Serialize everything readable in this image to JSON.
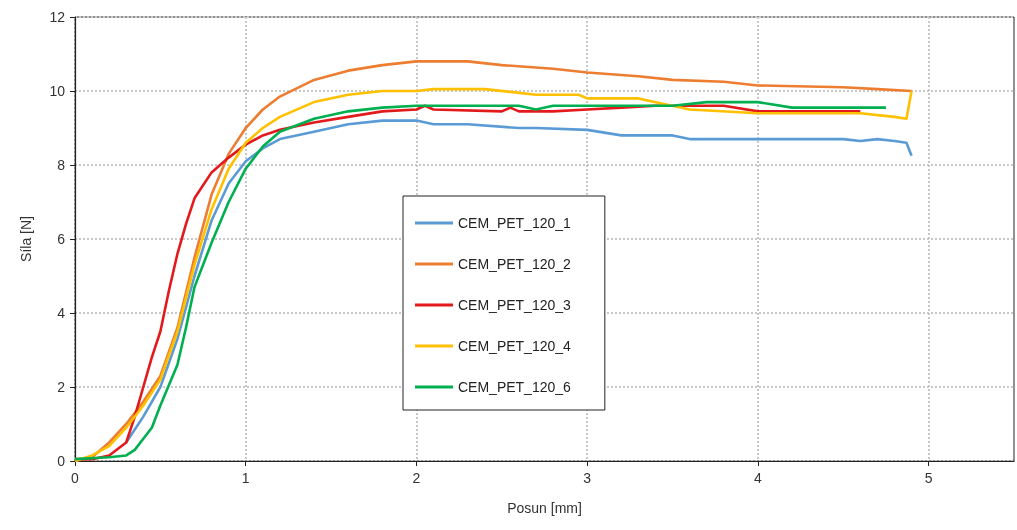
{
  "chart_data": {
    "type": "line",
    "xlabel": "Posun [mm]",
    "ylabel": "Síla [N]",
    "xlim": [
      0,
      5.5
    ],
    "xticks": [
      0,
      1,
      2,
      3,
      4,
      5
    ],
    "ylim": [
      0,
      12
    ],
    "yticks": [
      0,
      2,
      4,
      6,
      8,
      10,
      12
    ],
    "grid": true,
    "legend": "center",
    "marker": "none",
    "line_style": "solid",
    "series": [
      {
        "name": "CEM_PET_120_1",
        "color": "#5b9bd5",
        "x": [
          0.3,
          0.4,
          0.5,
          0.6,
          0.7,
          0.8,
          0.9,
          1.0,
          1.1,
          1.2,
          1.4,
          1.6,
          1.8,
          2.0,
          2.1,
          2.3,
          2.6,
          2.7,
          3.0,
          3.2,
          3.5,
          3.6,
          4.0,
          4.5,
          4.6,
          4.7,
          4.8,
          4.87,
          4.9
        ],
        "values": [
          0.5,
          1.2,
          2.0,
          3.3,
          5.0,
          6.5,
          7.5,
          8.1,
          8.45,
          8.7,
          8.9,
          9.1,
          9.2,
          9.2,
          9.1,
          9.1,
          9.0,
          9.0,
          8.95,
          8.8,
          8.8,
          8.7,
          8.7,
          8.7,
          8.65,
          8.7,
          8.65,
          8.6,
          8.25
        ]
      },
      {
        "name": "CEM_PET_120_2",
        "color": "#ed7d31",
        "x": [
          0,
          0.1,
          0.2,
          0.3,
          0.4,
          0.5,
          0.6,
          0.7,
          0.8,
          0.9,
          1.0,
          1.1,
          1.2,
          1.4,
          1.6,
          1.8,
          2.0,
          2.3,
          2.5,
          2.8,
          3.0,
          3.3,
          3.5,
          3.8,
          4.0,
          4.5,
          4.7,
          4.9
        ],
        "values": [
          0,
          0.1,
          0.5,
          1.0,
          1.6,
          2.3,
          3.6,
          5.5,
          7.2,
          8.3,
          9.0,
          9.5,
          9.85,
          10.3,
          10.55,
          10.7,
          10.8,
          10.8,
          10.7,
          10.6,
          10.5,
          10.4,
          10.3,
          10.25,
          10.15,
          10.1,
          10.05,
          10.0
        ]
      },
      {
        "name": "CEM_PET_120_3",
        "color": "#e31a1c",
        "x": [
          0,
          0.1,
          0.2,
          0.3,
          0.35,
          0.4,
          0.45,
          0.5,
          0.55,
          0.6,
          0.65,
          0.7,
          0.8,
          0.9,
          1.0,
          1.1,
          1.2,
          1.4,
          1.6,
          1.8,
          2.0,
          2.05,
          2.1,
          2.5,
          2.55,
          2.6,
          2.8,
          3.0,
          3.2,
          3.4,
          3.6,
          3.8,
          4.0,
          4.2,
          4.6
        ],
        "values": [
          0.05,
          0.05,
          0.15,
          0.5,
          1.2,
          2.0,
          2.8,
          3.5,
          4.6,
          5.6,
          6.4,
          7.1,
          7.8,
          8.2,
          8.55,
          8.8,
          8.95,
          9.15,
          9.3,
          9.45,
          9.5,
          9.6,
          9.5,
          9.45,
          9.55,
          9.45,
          9.45,
          9.5,
          9.55,
          9.6,
          9.6,
          9.6,
          9.45,
          9.45,
          9.45
        ]
      },
      {
        "name": "CEM_PET_120_4",
        "color": "#ffc000",
        "x": [
          0,
          0.1,
          0.2,
          0.3,
          0.4,
          0.5,
          0.6,
          0.7,
          0.8,
          0.9,
          1.0,
          1.1,
          1.2,
          1.4,
          1.6,
          1.8,
          2.0,
          2.1,
          2.4,
          2.7,
          2.95,
          3.0,
          3.3,
          3.6,
          4.0,
          4.6,
          4.8,
          4.87,
          4.9
        ],
        "values": [
          0,
          0.15,
          0.4,
          0.9,
          1.5,
          2.2,
          3.5,
          5.3,
          6.8,
          7.9,
          8.6,
          9.0,
          9.3,
          9.7,
          9.9,
          10.0,
          10.0,
          10.05,
          10.05,
          9.9,
          9.9,
          9.8,
          9.8,
          9.5,
          9.4,
          9.4,
          9.3,
          9.25,
          10.0
        ]
      },
      {
        "name": "CEM_PET_120_6",
        "color": "#00b050",
        "x": [
          0,
          0.2,
          0.3,
          0.35,
          0.4,
          0.45,
          0.5,
          0.6,
          0.65,
          0.7,
          0.8,
          0.9,
          1.0,
          1.1,
          1.2,
          1.4,
          1.6,
          1.8,
          2.0,
          2.6,
          2.7,
          2.8,
          3.5,
          3.7,
          4.0,
          4.2,
          4.5,
          4.75
        ],
        "values": [
          0.05,
          0.1,
          0.15,
          0.3,
          0.6,
          0.9,
          1.5,
          2.6,
          3.6,
          4.7,
          5.9,
          7.0,
          7.9,
          8.5,
          8.9,
          9.25,
          9.45,
          9.55,
          9.6,
          9.6,
          9.5,
          9.6,
          9.6,
          9.7,
          9.7,
          9.55,
          9.55,
          9.55
        ]
      }
    ]
  }
}
